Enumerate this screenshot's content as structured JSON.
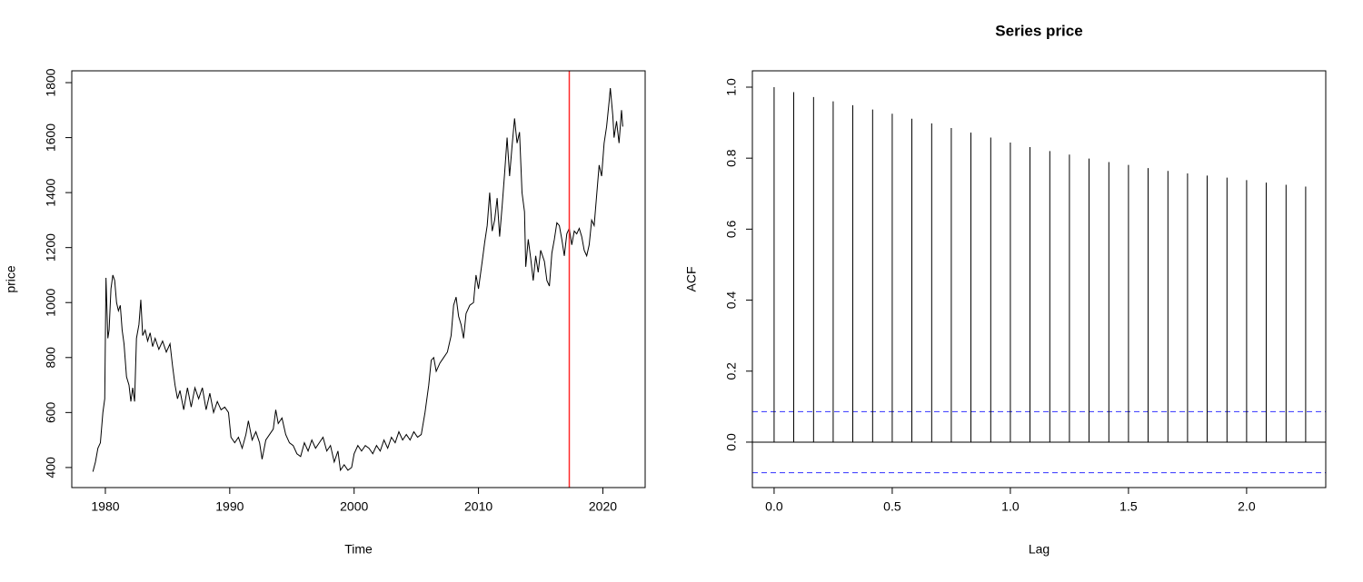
{
  "chart_data": [
    {
      "type": "line",
      "xlabel": "Time",
      "ylabel": "price",
      "color": "#000000",
      "xlim": [
        1977.3,
        2023.4
      ],
      "ylim": [
        327,
        1843
      ],
      "xticks": [
        1980,
        1990,
        2000,
        2010,
        2020
      ],
      "yticks": [
        400,
        600,
        800,
        1000,
        1200,
        1400,
        1600,
        1800
      ],
      "vline": 2017.3,
      "vline_color": "#ff2a2a",
      "x": [
        1979.0,
        1979.2,
        1979.4,
        1979.6,
        1979.8,
        1979.95,
        1980.05,
        1980.2,
        1980.3,
        1980.45,
        1980.6,
        1980.75,
        1980.9,
        1981.05,
        1981.2,
        1981.35,
        1981.5,
        1981.7,
        1981.9,
        1982.05,
        1982.2,
        1982.35,
        1982.5,
        1982.7,
        1982.85,
        1983.0,
        1983.2,
        1983.4,
        1983.6,
        1983.8,
        1984.0,
        1984.3,
        1984.6,
        1984.9,
        1985.2,
        1985.4,
        1985.6,
        1985.8,
        1986.0,
        1986.3,
        1986.6,
        1986.9,
        1987.2,
        1987.5,
        1987.8,
        1988.1,
        1988.4,
        1988.7,
        1989.0,
        1989.3,
        1989.6,
        1989.9,
        1990.1,
        1990.4,
        1990.7,
        1991.0,
        1991.3,
        1991.5,
        1991.8,
        1992.1,
        1992.4,
        1992.6,
        1992.9,
        1993.2,
        1993.5,
        1993.7,
        1993.9,
        1994.2,
        1994.5,
        1994.8,
        1995.1,
        1995.4,
        1995.7,
        1996.0,
        1996.3,
        1996.6,
        1996.9,
        1997.2,
        1997.5,
        1997.8,
        1998.1,
        1998.4,
        1998.7,
        1998.9,
        1999.2,
        1999.5,
        1999.8,
        2000.0,
        2000.3,
        2000.6,
        2000.9,
        2001.2,
        2001.5,
        2001.8,
        2002.1,
        2002.4,
        2002.7,
        2003.0,
        2003.3,
        2003.6,
        2003.9,
        2004.2,
        2004.5,
        2004.8,
        2005.1,
        2005.4,
        2005.7,
        2006.0,
        2006.2,
        2006.4,
        2006.6,
        2006.9,
        2007.2,
        2007.5,
        2007.8,
        2008.0,
        2008.2,
        2008.4,
        2008.6,
        2008.8,
        2009.0,
        2009.3,
        2009.6,
        2009.8,
        2010.0,
        2010.3,
        2010.5,
        2010.7,
        2010.9,
        2011.1,
        2011.3,
        2011.5,
        2011.7,
        2011.9,
        2012.1,
        2012.3,
        2012.5,
        2012.7,
        2012.9,
        2013.1,
        2013.3,
        2013.5,
        2013.7,
        2013.8,
        2014.0,
        2014.2,
        2014.4,
        2014.6,
        2014.8,
        2015.0,
        2015.3,
        2015.5,
        2015.7,
        2015.9,
        2016.1,
        2016.3,
        2016.5,
        2016.7,
        2016.9,
        2017.1,
        2017.3,
        2017.5,
        2017.7,
        2017.9,
        2018.1,
        2018.3,
        2018.5,
        2018.7,
        2018.9,
        2019.1,
        2019.3,
        2019.5,
        2019.7,
        2019.9,
        2020.1,
        2020.3,
        2020.5,
        2020.6,
        2020.8,
        2020.9,
        2021.1,
        2021.3,
        2021.5,
        2021.6
      ],
      "values": [
        385,
        420,
        470,
        490,
        600,
        650,
        1090,
        870,
        900,
        1050,
        1100,
        1080,
        1000,
        970,
        990,
        900,
        850,
        730,
        700,
        640,
        690,
        640,
        870,
        920,
        1010,
        880,
        900,
        860,
        890,
        840,
        870,
        830,
        860,
        820,
        850,
        770,
        700,
        650,
        680,
        610,
        690,
        620,
        690,
        650,
        690,
        610,
        670,
        600,
        640,
        610,
        620,
        600,
        510,
        490,
        510,
        470,
        520,
        570,
        500,
        530,
        490,
        430,
        500,
        520,
        540,
        610,
        560,
        580,
        520,
        490,
        480,
        450,
        440,
        490,
        460,
        500,
        470,
        490,
        510,
        460,
        480,
        420,
        460,
        390,
        410,
        390,
        400,
        450,
        480,
        460,
        480,
        470,
        450,
        480,
        460,
        500,
        470,
        510,
        490,
        530,
        500,
        520,
        500,
        530,
        510,
        520,
        600,
        700,
        790,
        800,
        750,
        780,
        800,
        820,
        880,
        990,
        1020,
        950,
        920,
        870,
        960,
        990,
        1000,
        1100,
        1050,
        1150,
        1220,
        1280,
        1400,
        1260,
        1300,
        1380,
        1240,
        1350,
        1470,
        1600,
        1460,
        1570,
        1670,
        1580,
        1620,
        1400,
        1330,
        1130,
        1230,
        1160,
        1080,
        1170,
        1110,
        1190,
        1150,
        1080,
        1060,
        1180,
        1230,
        1290,
        1280,
        1230,
        1170,
        1250,
        1270,
        1210,
        1260,
        1250,
        1270,
        1240,
        1190,
        1170,
        1210,
        1300,
        1280,
        1390,
        1500,
        1460,
        1580,
        1640,
        1730,
        1780,
        1680,
        1600,
        1660,
        1580,
        1700,
        1640
      ]
    },
    {
      "type": "stem",
      "title": "Series  price",
      "xlabel": "Lag",
      "ylabel": "ACF",
      "color": "#000000",
      "xlim": [
        -0.092,
        2.335
      ],
      "ylim": [
        -0.128,
        1.046
      ],
      "xticks": [
        {
          "value": 0,
          "label": "0.0"
        },
        0.5,
        {
          "value": 1,
          "label": "1.0"
        },
        1.5,
        {
          "value": 2,
          "label": "2.0"
        }
      ],
      "yticks": [
        {
          "value": 0,
          "label": "0.0"
        },
        0.2,
        0.4,
        0.6,
        0.8,
        {
          "value": 1,
          "label": "1.0"
        }
      ],
      "hlines": [
        0.086,
        -0.086
      ],
      "hline_color": "#3333ff",
      "x": [
        0,
        0.083,
        0.167,
        0.25,
        0.333,
        0.417,
        0.5,
        0.583,
        0.667,
        0.75,
        0.833,
        0.917,
        1,
        1.083,
        1.167,
        1.25,
        1.333,
        1.417,
        1.5,
        1.583,
        1.667,
        1.75,
        1.833,
        1.917,
        2,
        2.083,
        2.167,
        2.25
      ],
      "values": [
        1,
        0.986,
        0.972,
        0.96,
        0.949,
        0.937,
        0.925,
        0.911,
        0.898,
        0.885,
        0.872,
        0.858,
        0.844,
        0.831,
        0.82,
        0.81,
        0.799,
        0.789,
        0.781,
        0.772,
        0.764,
        0.757,
        0.751,
        0.745,
        0.738,
        0.731,
        0.725,
        0.72
      ]
    }
  ]
}
